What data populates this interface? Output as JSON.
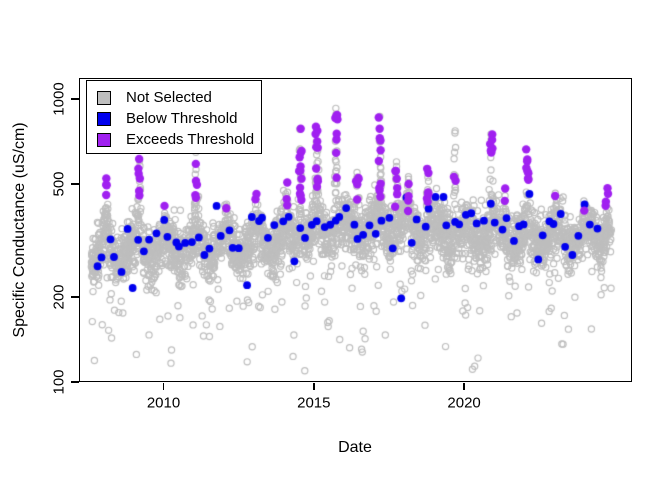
{
  "chart_data": {
    "type": "scatter",
    "title": "",
    "xlabel": "Date",
    "ylabel": "Specific Conductance (uS/cm)",
    "x_axis": {
      "range_years": [
        2007.3,
        2025.6
      ],
      "ticks": [
        {
          "label": "2010",
          "year": 2010
        },
        {
          "label": "2015",
          "year": 2015
        },
        {
          "label": "2020",
          "year": 2020
        }
      ]
    },
    "y_axis": {
      "scale": "log10",
      "range": [
        95,
        1150
      ],
      "ticks": [
        {
          "label": "100",
          "value": 100
        },
        {
          "label": "200",
          "value": 200
        },
        {
          "label": "500",
          "value": 500
        },
        {
          "label": "1000",
          "value": 1000
        }
      ]
    },
    "legend": {
      "position": "top-left",
      "items": [
        {
          "label": "Not Selected",
          "color": "#BEBEBE",
          "marker": "open-square"
        },
        {
          "label": "Below Threshold",
          "color": "#0000EE",
          "marker": "filled-square"
        },
        {
          "label": "Exceeds Threshold",
          "color": "#A020F0",
          "marker": "filled-square"
        }
      ]
    },
    "series": [
      {
        "name": "Not Selected",
        "marker": "open-circle",
        "color": "#BEBEBE",
        "n": 3800,
        "seed": 7,
        "time_range": [
          2007.6,
          2024.9
        ],
        "base_trend": [
          [
            2007.6,
            290
          ],
          [
            2012,
            298
          ],
          [
            2014,
            322
          ],
          [
            2016,
            348
          ],
          [
            2018,
            352
          ],
          [
            2020,
            332
          ],
          [
            2022,
            325
          ],
          [
            2024.9,
            332
          ]
        ],
        "seasonal_amplitude_log10": 0.035,
        "seasonal_peak_fraction": 0.07,
        "noise_sigma_log10": 0.045,
        "low_outlier_rates": {
          "deep": 0.012,
          "mild": 0.06
        },
        "max_value": 1060,
        "spikes_t_peak_purplecount": [
          [
            2008.1,
            560,
            4
          ],
          [
            2009.2,
            650,
            6
          ],
          [
            2010.05,
            430,
            1
          ],
          [
            2011.1,
            840,
            9
          ],
          [
            2012.1,
            450,
            1
          ],
          [
            2013.1,
            480,
            2
          ],
          [
            2014.1,
            520,
            3
          ],
          [
            2014.55,
            880,
            12
          ],
          [
            2015.1,
            900,
            10
          ],
          [
            2015.75,
            1060,
            8
          ],
          [
            2016.45,
            580,
            5
          ],
          [
            2017.2,
            910,
            10
          ],
          [
            2017.75,
            640,
            6
          ],
          [
            2018.15,
            560,
            4
          ],
          [
            2018.8,
            600,
            6
          ],
          [
            2019.7,
            880,
            2
          ],
          [
            2020.9,
            780,
            7
          ],
          [
            2021.35,
            520,
            2
          ],
          [
            2022.1,
            720,
            8
          ],
          [
            2023.05,
            470,
            1
          ],
          [
            2024.0,
            450,
            1
          ],
          [
            2024.75,
            500,
            4
          ]
        ]
      },
      {
        "name": "Below Threshold",
        "marker": "filled-circle",
        "color": "#0000EE",
        "n": 85,
        "seed": 13,
        "time_range": [
          2007.7,
          2024.5
        ],
        "value_sigma_log10": 0.05,
        "value_clip": [
          168,
          462
        ]
      },
      {
        "name": "Exceeds Threshold",
        "marker": "filled-circle",
        "color": "#A020F0",
        "seed": 21,
        "min_value": 420,
        "total_points": 112
      }
    ]
  }
}
